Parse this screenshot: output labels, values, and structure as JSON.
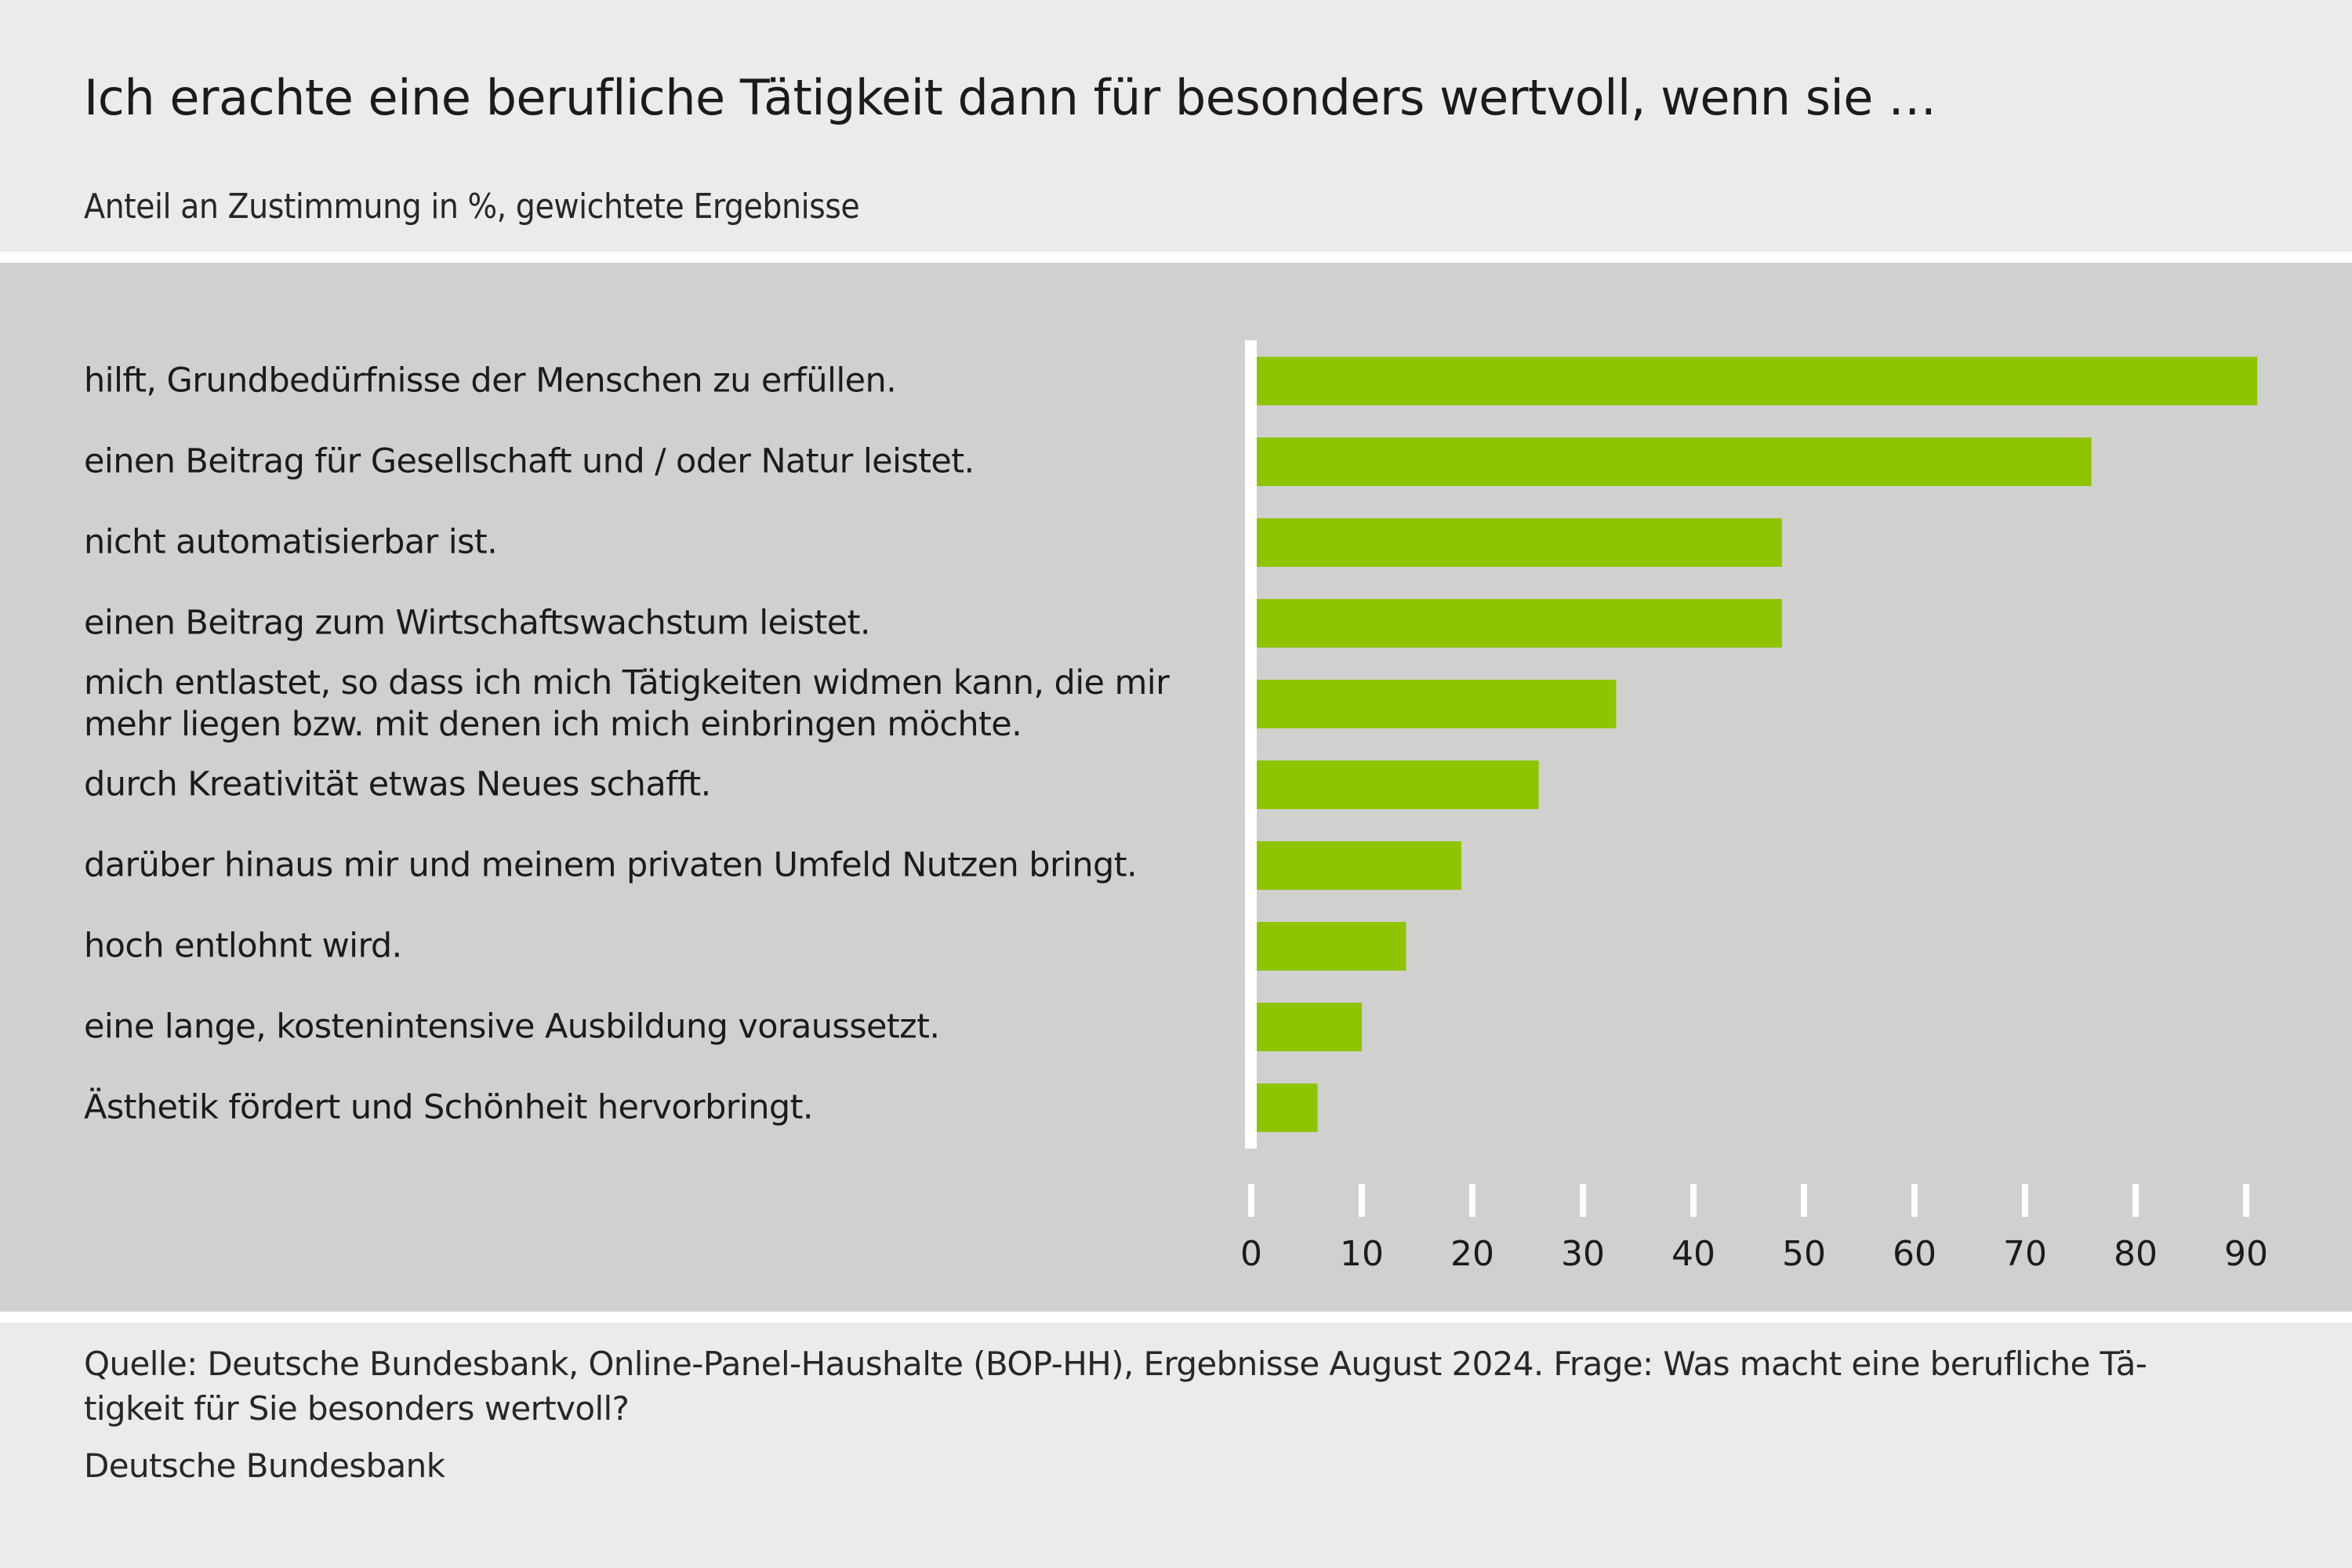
{
  "header": {
    "title": "Ich erachte eine berufliche Tätigkeit dann für besonders wertvoll, wenn sie …",
    "subtitle": "Anteil an Zustimmung in %, gewichtete Ergebnisse"
  },
  "footer": {
    "source": "Quelle: Deutsche Bundesbank, Online-Panel-Haushalte (BOP-HH), Ergebnisse August 2024. Frage: Was macht eine berufliche Tä-tigkeit für Sie besonders wertvoll?",
    "source_line1": "Quelle: Deutsche Bundesbank, Online-Panel-Haushalte (BOP-HH), Ergebnisse August 2024. Frage: Was macht eine berufliche Tä-",
    "source_line2": "tigkeit für Sie besonders wertvoll?",
    "publisher": "Deutsche Bundesbank"
  },
  "colors": {
    "bar": "#8FC400",
    "panel_background": "#D0D0CE",
    "page_background": "#EBEBEB",
    "axis": "#FFFFFF",
    "text": "#1E1A1A"
  },
  "chart_data": {
    "type": "bar",
    "orientation": "horizontal",
    "title": "Ich erachte eine berufliche Tätigkeit dann für besonders wertvoll, wenn sie …",
    "subtitle": "Anteil an Zustimmung in %, gewichtete Ergebnisse",
    "xlabel": "",
    "ylabel": "",
    "xlim": [
      0,
      90
    ],
    "x_ticks": [
      0,
      10,
      20,
      30,
      40,
      50,
      60,
      70,
      80,
      90
    ],
    "grid": false,
    "legend": "none",
    "categories": [
      "hilft, Grundbedürfnisse der Menschen zu erfüllen.",
      "einen Beitrag für Gesellschaft und / oder Natur leistet.",
      "nicht automatisierbar ist.",
      "einen Beitrag zum Wirtschaftswachstum leistet.",
      "mich entlastet, so dass ich mich Tätigkeiten widmen kann, die mir mehr liegen bzw. mit denen ich mich einbringen möchte.",
      "durch Kreativität etwas Neues schafft.",
      "darüber hinaus mir und meinem privaten Umfeld Nutzen bringt.",
      "hoch entlohnt wird.",
      "eine lange, kostenintensive Ausbildung voraussetzt.",
      "Ästhetik fördert und Schönheit hervorbringt."
    ],
    "values": [
      91,
      76,
      48,
      48,
      33,
      26,
      19,
      14,
      10,
      6
    ],
    "series": [
      {
        "name": "Anteil an Zustimmung in %",
        "values": [
          91,
          76,
          48,
          48,
          33,
          26,
          19,
          14,
          10,
          6
        ]
      }
    ],
    "source": "Deutsche Bundesbank, Online-Panel-Haushalte (BOP-HH), Ergebnisse August 2024"
  }
}
